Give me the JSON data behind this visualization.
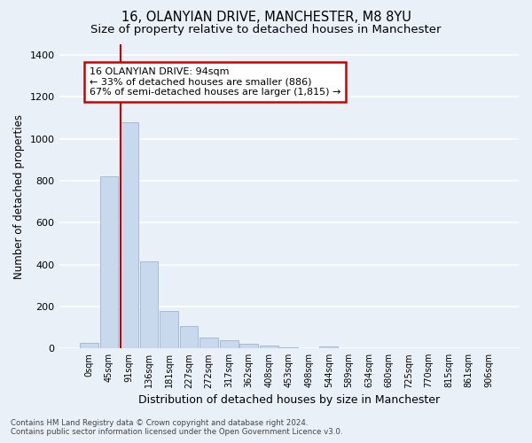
{
  "title1": "16, OLANYIAN DRIVE, MANCHESTER, M8 8YU",
  "title2": "Size of property relative to detached houses in Manchester",
  "xlabel": "Distribution of detached houses by size in Manchester",
  "ylabel": "Number of detached properties",
  "footnote": "Contains HM Land Registry data © Crown copyright and database right 2024.\nContains public sector information licensed under the Open Government Licence v3.0.",
  "bar_labels": [
    "0sqm",
    "45sqm",
    "91sqm",
    "136sqm",
    "181sqm",
    "227sqm",
    "272sqm",
    "317sqm",
    "362sqm",
    "408sqm",
    "453sqm",
    "498sqm",
    "544sqm",
    "589sqm",
    "634sqm",
    "680sqm",
    "725sqm",
    "770sqm",
    "815sqm",
    "861sqm",
    "906sqm"
  ],
  "bar_values": [
    25,
    820,
    1080,
    415,
    180,
    105,
    50,
    38,
    22,
    12,
    5,
    2,
    10,
    0,
    0,
    0,
    0,
    0,
    0,
    0,
    0
  ],
  "bar_color": "#c8d9ed",
  "bar_edge_color": "#9ab5d0",
  "vline_x": 1.575,
  "vline_color": "#cc0000",
  "annotation_text": "16 OLANYIAN DRIVE: 94sqm\n← 33% of detached houses are smaller (886)\n67% of semi-detached houses are larger (1,815) →",
  "annotation_box_color": "#ffffff",
  "annotation_box_edge": "#cc0000",
  "ylim": [
    0,
    1450
  ],
  "yticks": [
    0,
    200,
    400,
    600,
    800,
    1000,
    1200,
    1400
  ],
  "bg_color": "#eaf0f8",
  "plot_bg_color": "#eaf0f8",
  "grid_color": "#ffffff",
  "title1_fontsize": 10.5,
  "title2_fontsize": 9.5,
  "xlabel_fontsize": 9,
  "ylabel_fontsize": 8.5
}
